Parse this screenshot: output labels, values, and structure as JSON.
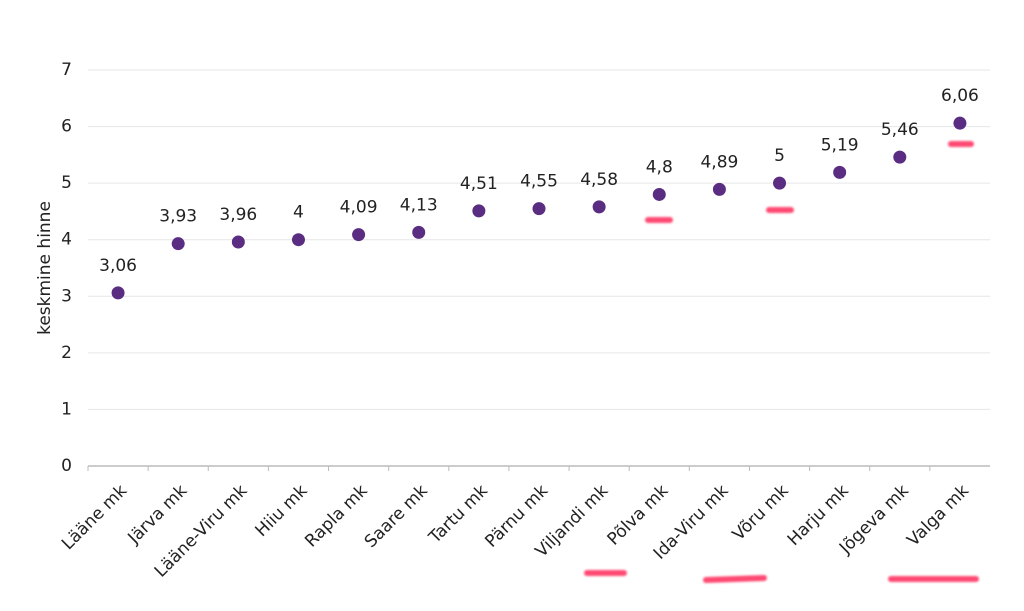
{
  "chart_data": {
    "type": "dot",
    "y_label": "keskmine hinne",
    "categories": [
      "Lääne mk",
      "Järva mk",
      "Lääne-Viru mk",
      "Hiiu mk",
      "Rapla mk",
      "Saare mk",
      "Tartu mk",
      "Pärnu mk",
      "Viljandi mk",
      "Põlva mk",
      "Ida-Viru mk",
      "Võru mk",
      "Harju mk",
      "Jõgeva mk",
      "Valga mk"
    ],
    "values": [
      3.06,
      3.93,
      3.96,
      4,
      4.09,
      4.13,
      4.51,
      4.55,
      4.58,
      4.8,
      4.89,
      5,
      5.19,
      5.46,
      6.06
    ],
    "value_labels": [
      "3,06",
      "3,93",
      "3,96",
      "4",
      "4,09",
      "4,13",
      "4,51",
      "4,55",
      "4,58",
      "4,8",
      "4,89",
      "5",
      "5,19",
      "5,46",
      "6,06"
    ],
    "color": "#5a2d82",
    "ylim": [
      0,
      7
    ],
    "yticks": [
      0,
      1,
      2,
      3,
      4,
      5,
      6,
      7
    ],
    "grid": true
  }
}
